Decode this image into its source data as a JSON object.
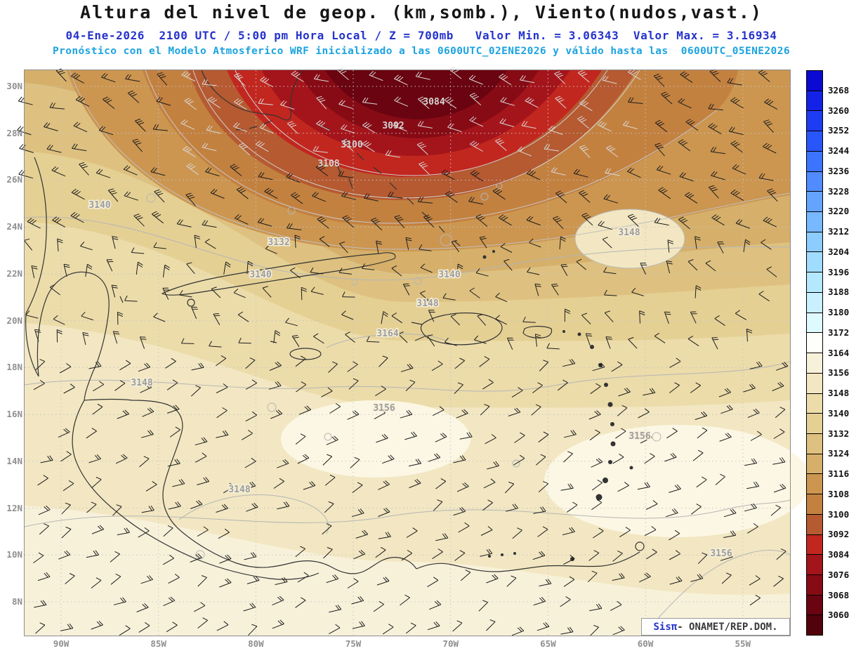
{
  "header": {
    "title": "Altura del nivel de geop. (km,somb.), Viento(nudos,vast.)",
    "subtitle1": "04-Ene-2026  2100 UTC / 5:00 pm Hora Local / Z = 700mb   Valor Min. = 3.06343  Valor Max. = 3.16934",
    "subtitle2": "Pronóstico con el Modelo Atmosferico WRF inicializado a las 0600UTC_02ENE2026 y válido hasta las  0600UTC_05ENE2026"
  },
  "chart_data": {
    "type": "heatmap",
    "title": "Altura del nivel de geop. (km,somb.), Viento(nudos,vast.)",
    "variable": "Geopotential height (km, shaded) and wind (knots, barbs)",
    "level": "700mb",
    "valid_time": "04-Ene-2026 2100 UTC / 5:00 pm Hora Local",
    "value_min": 3.06343,
    "value_max": 3.16934,
    "model": "WRF",
    "init_time": "0600UTC_02ENE2026",
    "valid_until": "0600UTC_05ENE2026",
    "x_ticks": [
      "90W",
      "85W",
      "80W",
      "75W",
      "70W",
      "65W",
      "60W",
      "55W"
    ],
    "y_ticks": [
      "30N",
      "28N",
      "26N",
      "24N",
      "22N",
      "20N",
      "18N",
      "16N",
      "14N",
      "12N",
      "10N",
      "8N"
    ],
    "colorbar_labels": [
      "3268",
      "3260",
      "3252",
      "3244",
      "3236",
      "3228",
      "3220",
      "3212",
      "3204",
      "3196",
      "3188",
      "3180",
      "3172",
      "3164",
      "3156",
      "3148",
      "3140",
      "3132",
      "3124",
      "3116",
      "3108",
      "3100",
      "3092",
      "3084",
      "3076",
      "3068",
      "3060"
    ],
    "colorbar_colors": [
      "#0a0ad2",
      "#1422e8",
      "#1e3cf2",
      "#2856fa",
      "#3c74ff",
      "#508cff",
      "#64a4ff",
      "#78b8ff",
      "#8cccff",
      "#a0dcff",
      "#b4e8ff",
      "#c8f0ff",
      "#defaff",
      "#fefefa",
      "#f8f1da",
      "#f2e7c2",
      "#ecdcaa",
      "#e5d094",
      "#dec180",
      "#d6b06a",
      "#cc9650",
      "#c38140",
      "#b55a31",
      "#c1271f",
      "#a4151b",
      "#870b15",
      "#6a0410",
      "#52020b"
    ],
    "contour_labels_on_map": [
      {
        "value": "3084",
        "x": 618,
        "y": 149,
        "tone": "dark"
      },
      {
        "value": "3092",
        "x": 560,
        "y": 183,
        "tone": "dark"
      },
      {
        "value": "3100",
        "x": 501,
        "y": 210,
        "tone": "dark"
      },
      {
        "value": "3108",
        "x": 468,
        "y": 237,
        "tone": "dark"
      },
      {
        "value": "3140",
        "x": 142,
        "y": 296,
        "tone": "light"
      },
      {
        "value": "3132",
        "x": 397,
        "y": 349,
        "tone": "light"
      },
      {
        "value": "3140",
        "x": 371,
        "y": 395,
        "tone": "light"
      },
      {
        "value": "3140",
        "x": 640,
        "y": 395,
        "tone": "light"
      },
      {
        "value": "3148",
        "x": 896,
        "y": 335,
        "tone": "light"
      },
      {
        "value": "3148",
        "x": 609,
        "y": 436,
        "tone": "light"
      },
      {
        "value": "3164",
        "x": 552,
        "y": 479,
        "tone": "light"
      },
      {
        "value": "3148",
        "x": 202,
        "y": 549,
        "tone": "light"
      },
      {
        "value": "3156",
        "x": 547,
        "y": 585,
        "tone": "light"
      },
      {
        "value": "3156",
        "x": 911,
        "y": 625,
        "tone": "light"
      },
      {
        "value": "3148",
        "x": 341,
        "y": 701,
        "tone": "light"
      },
      {
        "value": "3156",
        "x": 1027,
        "y": 792,
        "tone": "light"
      }
    ]
  },
  "credit": {
    "logo": "Sisπ",
    "text": "- ONAMET/REP.DOM."
  }
}
